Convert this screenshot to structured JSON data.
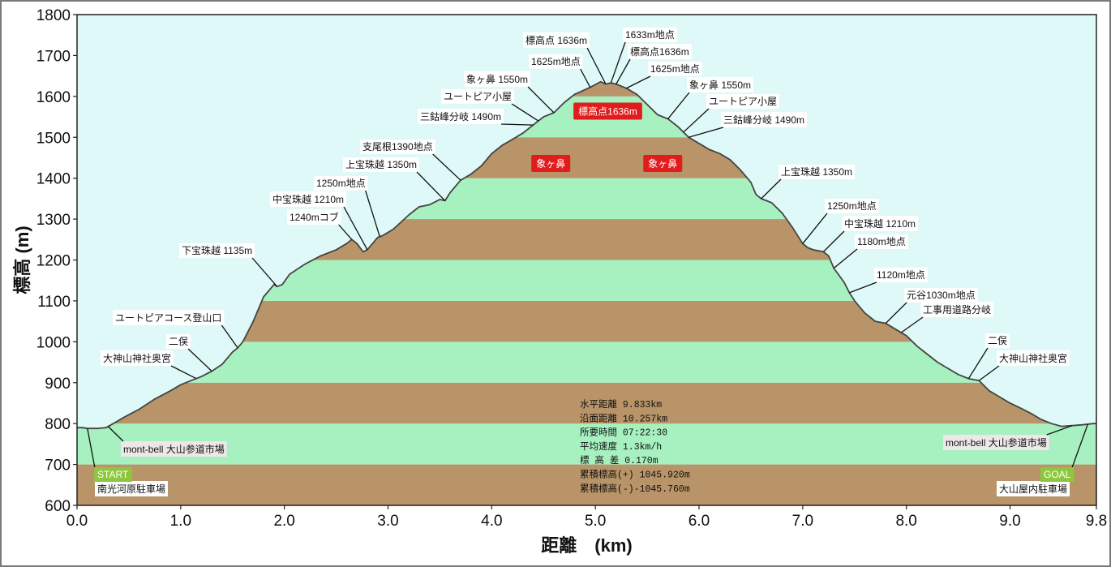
{
  "chart_data": {
    "type": "area",
    "xlabel": "距離　(km)",
    "ylabel": "標高 (m)",
    "xlim": [
      0,
      9.833
    ],
    "ylim": [
      600,
      1800
    ],
    "x_ticks": [
      "0.0",
      "1.0",
      "2.0",
      "3.0",
      "4.0",
      "5.0",
      "6.0",
      "7.0",
      "8.0",
      "9.0",
      "9.8"
    ],
    "x_tick_values": [
      0,
      1,
      2,
      3,
      4,
      5,
      6,
      7,
      8,
      9,
      9.833
    ],
    "y_ticks": [
      600,
      700,
      800,
      900,
      1000,
      1100,
      1200,
      1300,
      1400,
      1500,
      1600,
      1700,
      1800
    ],
    "bands": {
      "colors": [
        "#b89468",
        "#a7f0bf"
      ],
      "interval_m": 100
    },
    "sky_color": "#dff8f8",
    "line_color": "#444444",
    "profile": {
      "x": [
        0,
        0.05,
        0.1,
        0.2,
        0.28,
        0.35,
        0.45,
        0.6,
        0.75,
        0.9,
        1.0,
        1.1,
        1.2,
        1.3,
        1.4,
        1.5,
        1.55,
        1.6,
        1.7,
        1.8,
        1.9,
        1.93,
        1.98,
        2.05,
        2.2,
        2.35,
        2.5,
        2.6,
        2.65,
        2.7,
        2.73,
        2.76,
        2.8,
        2.85,
        2.9,
        2.95,
        3.05,
        3.2,
        3.3,
        3.4,
        3.5,
        3.55,
        3.6,
        3.7,
        3.8,
        3.9,
        4.0,
        4.1,
        4.2,
        4.3,
        4.4,
        4.5,
        4.6,
        4.7,
        4.8,
        4.95,
        5.05,
        5.1,
        5.15,
        5.2,
        5.3,
        5.4,
        5.5,
        5.6,
        5.7,
        5.8,
        5.9,
        6.0,
        6.1,
        6.2,
        6.3,
        6.4,
        6.5,
        6.55,
        6.6,
        6.7,
        6.8,
        6.9,
        7.0,
        7.05,
        7.1,
        7.2,
        7.25,
        7.3,
        7.4,
        7.45,
        7.5,
        7.6,
        7.7,
        7.8,
        7.9,
        8.0,
        8.1,
        8.2,
        8.3,
        8.4,
        8.5,
        8.6,
        8.7,
        8.8,
        8.9,
        9.0,
        9.1,
        9.2,
        9.3,
        9.4,
        9.5,
        9.6,
        9.7,
        9.8,
        9.833
      ],
      "y": [
        790,
        790,
        788,
        788,
        790,
        800,
        815,
        835,
        860,
        880,
        895,
        905,
        915,
        928,
        945,
        975,
        985,
        1000,
        1050,
        1110,
        1140,
        1135,
        1140,
        1165,
        1190,
        1210,
        1225,
        1240,
        1250,
        1240,
        1230,
        1220,
        1225,
        1240,
        1255,
        1260,
        1275,
        1310,
        1330,
        1335,
        1348,
        1345,
        1365,
        1395,
        1410,
        1430,
        1460,
        1480,
        1495,
        1510,
        1530,
        1550,
        1560,
        1585,
        1605,
        1622,
        1636,
        1630,
        1633,
        1630,
        1620,
        1605,
        1580,
        1555,
        1545,
        1525,
        1500,
        1485,
        1470,
        1460,
        1445,
        1420,
        1390,
        1360,
        1350,
        1340,
        1315,
        1280,
        1240,
        1230,
        1225,
        1220,
        1210,
        1180,
        1145,
        1120,
        1100,
        1070,
        1050,
        1045,
        1030,
        1015,
        990,
        970,
        950,
        935,
        920,
        910,
        905,
        880,
        865,
        850,
        838,
        825,
        810,
        800,
        793,
        795,
        797,
        800,
        800
      ]
    },
    "annotations": [
      {
        "text": "南光河原駐車場",
        "x": 0.1
      },
      {
        "text": "mont-bell 大山参道市場",
        "x": 0.3
      },
      {
        "text": "大神山神社奥宮",
        "x": 1.15
      },
      {
        "text": "二俣",
        "x": 1.3
      },
      {
        "text": "ユートピアコース登山口",
        "x": 1.55
      },
      {
        "text": "下宝珠越 1135m",
        "x": 1.93
      },
      {
        "text": "1240mコブ",
        "x": 2.65
      },
      {
        "text": "中宝珠越 1210m",
        "x": 2.8
      },
      {
        "text": "1250m地点",
        "x": 2.92
      },
      {
        "text": "上宝珠越 1350m",
        "x": 3.55
      },
      {
        "text": "支尾根1390地点",
        "x": 3.7
      },
      {
        "text": "三鈷峰分岐 1490m",
        "x": 4.4
      },
      {
        "text": "ユートピア小屋",
        "x": 4.45
      },
      {
        "text": "象ヶ鼻 1550m",
        "x": 4.6
      },
      {
        "text": "1625m地点",
        "x": 4.95
      },
      {
        "text": "標高点 1636m",
        "x": 5.1
      },
      {
        "text": "1633m地点",
        "x": 5.15
      },
      {
        "text": "標高点1636m",
        "x": 5.2
      },
      {
        "text": "1625m地点",
        "x": 5.3
      },
      {
        "text": "象ヶ鼻 1550m",
        "x": 5.7
      },
      {
        "text": "ユートピア小屋",
        "x": 5.85
      },
      {
        "text": "三鈷峰分岐 1490m",
        "x": 5.9
      },
      {
        "text": "上宝珠越 1350m",
        "x": 6.6
      },
      {
        "text": "1250m地点",
        "x": 7.0
      },
      {
        "text": "中宝珠越 1210m",
        "x": 7.2
      },
      {
        "text": "1180m地点",
        "x": 7.3
      },
      {
        "text": "1120m地点",
        "x": 7.45
      },
      {
        "text": "元谷1030m地点",
        "x": 7.8
      },
      {
        "text": "工事用道路分岐",
        "x": 7.95
      },
      {
        "text": "二俣",
        "x": 8.6
      },
      {
        "text": "大神山神社奥宮",
        "x": 8.7
      },
      {
        "text": "mont-bell 大山参道市場",
        "x": 9.6
      },
      {
        "text": "大山屋内駐車場",
        "x": 9.75
      }
    ],
    "highlights": [
      {
        "text": "標高点1636m",
        "x": 5.12,
        "y": 1563
      },
      {
        "text": "象ヶ鼻",
        "x": 4.57,
        "y": 1435
      },
      {
        "text": "象ヶ鼻",
        "x": 5.65,
        "y": 1435
      }
    ],
    "start_label": "START",
    "goal_label": "GOAL",
    "stats": [
      "水平距離 9.833km",
      "沿面距離 10.257km",
      "所要時間 07:22:30",
      "平均速度 1.3km/h",
      "標 高 差 0.170m",
      "累積標高(+) 1045.920m",
      "累積標高(-)-1045.760m"
    ]
  }
}
